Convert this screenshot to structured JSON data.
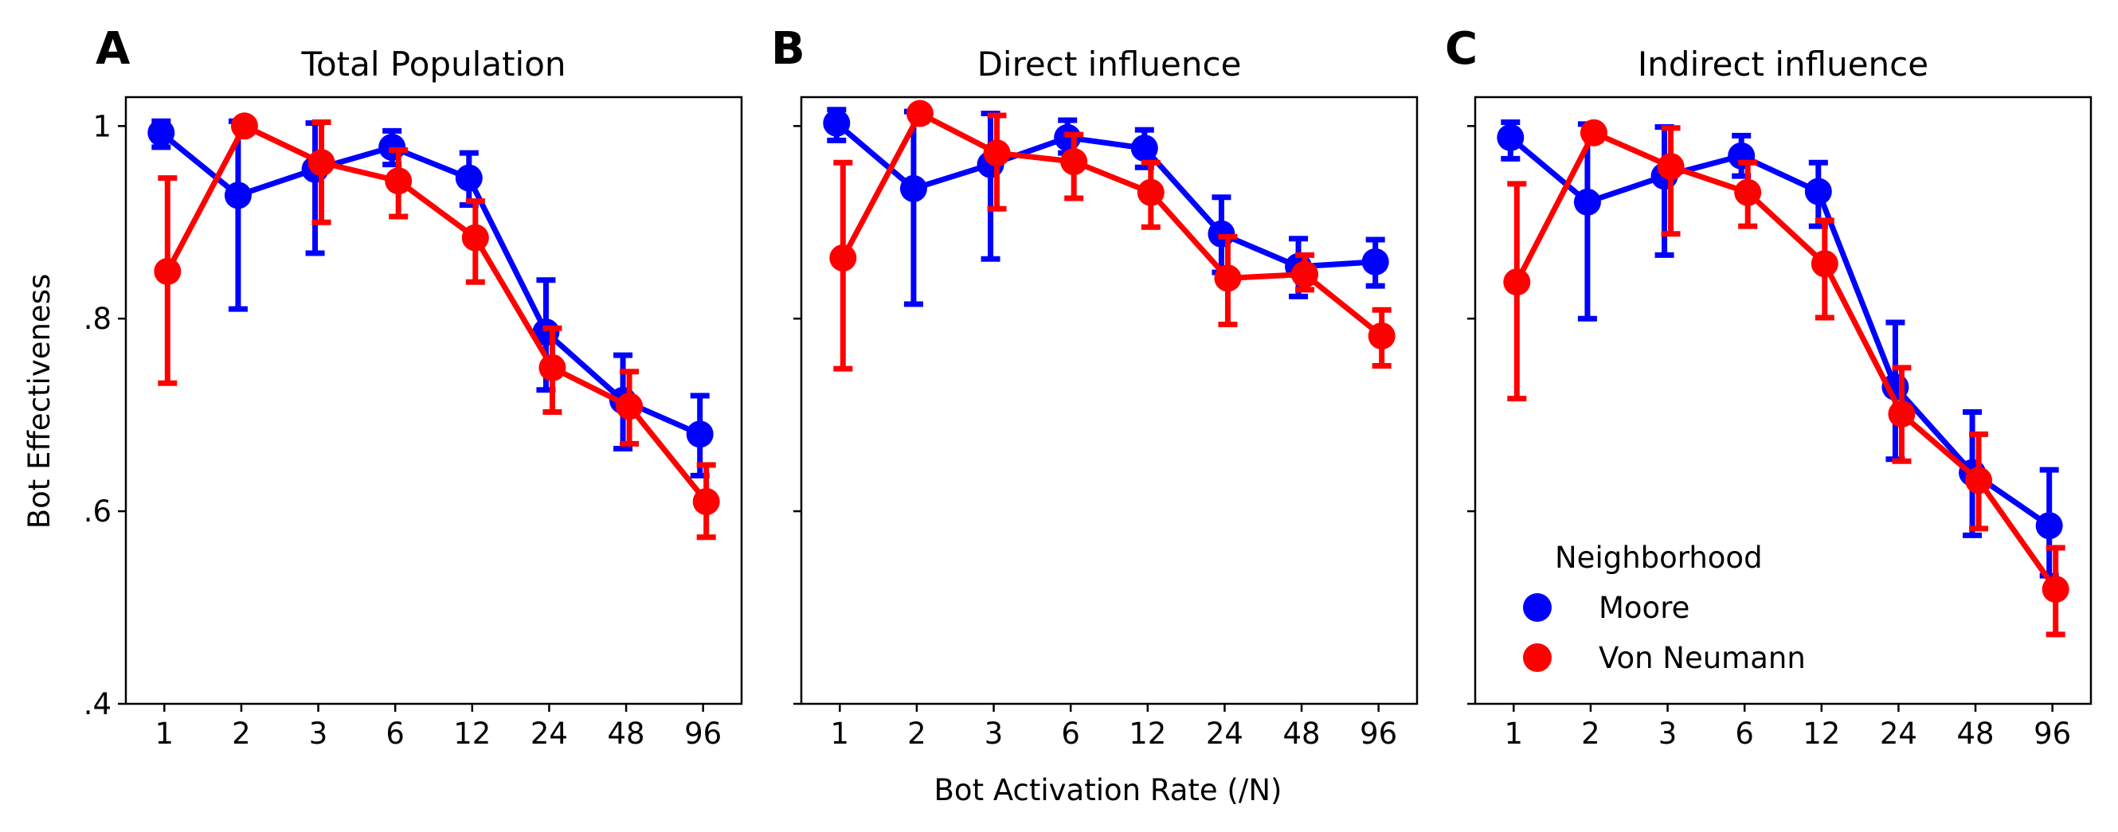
{
  "figure": {
    "xlabel": "Bot Activation Rate (/N)",
    "ylabel": "Bot Effectiveness",
    "legend": {
      "title": "Neighborhood",
      "entries": [
        {
          "label": "Moore",
          "color": "#0000ff"
        },
        {
          "label": "Von Neumann",
          "color": "#ff0000"
        }
      ]
    }
  },
  "chart_data": [
    {
      "type": "line",
      "panel_letter": "A",
      "title": "Total Population",
      "categories": [
        "1",
        "2",
        "3",
        "6",
        "12",
        "24",
        "48",
        "96"
      ],
      "ylim": [
        0.4,
        1.03
      ],
      "yticks": [
        0.4,
        0.6,
        0.8,
        1.0
      ],
      "ytick_labels": [
        ".4",
        ".6",
        ".8",
        "1"
      ],
      "show_ytick_labels": true,
      "show_legend": false,
      "series": [
        {
          "name": "Moore",
          "color": "#0000ff",
          "values": [
            0.993,
            0.928,
            0.955,
            0.978,
            0.946,
            0.786,
            0.715,
            0.68
          ],
          "err_low": [
            0.978,
            0.81,
            0.868,
            0.96,
            0.918,
            0.726,
            0.665,
            0.637
          ],
          "err_high": [
            1.005,
            1.005,
            1.003,
            0.995,
            0.972,
            0.84,
            0.762,
            0.72
          ]
        },
        {
          "name": "Von Neumann",
          "color": "#ff0000",
          "values": [
            0.849,
            1.0,
            0.962,
            0.943,
            0.884,
            0.749,
            0.709,
            0.61
          ],
          "err_low": [
            0.733,
            0.995,
            0.9,
            0.906,
            0.838,
            0.703,
            0.67,
            0.573
          ],
          "err_high": [
            0.946,
            1.003,
            1.004,
            0.975,
            0.922,
            0.79,
            0.745,
            0.648
          ]
        }
      ]
    },
    {
      "type": "line",
      "panel_letter": "B",
      "title": "Direct influence",
      "categories": [
        "1",
        "2",
        "3",
        "6",
        "12",
        "24",
        "48",
        "96"
      ],
      "ylim": [
        0.4,
        1.03
      ],
      "yticks": [
        0.4,
        0.6,
        0.8,
        1.0
      ],
      "ytick_labels": [
        ".4",
        ".6",
        ".8",
        "1"
      ],
      "show_ytick_labels": false,
      "show_legend": false,
      "series": [
        {
          "name": "Moore",
          "color": "#0000ff",
          "values": [
            1.003,
            0.935,
            0.96,
            0.988,
            0.977,
            0.888,
            0.854,
            0.859
          ],
          "err_low": [
            0.985,
            0.815,
            0.862,
            0.972,
            0.957,
            0.848,
            0.823,
            0.834
          ],
          "err_high": [
            1.017,
            1.015,
            1.013,
            1.006,
            0.996,
            0.926,
            0.883,
            0.882
          ]
        },
        {
          "name": "Von Neumann",
          "color": "#ff0000",
          "values": [
            0.863,
            1.013,
            0.972,
            0.963,
            0.931,
            0.842,
            0.846,
            0.782
          ],
          "err_low": [
            0.748,
            1.005,
            0.914,
            0.925,
            0.895,
            0.794,
            0.83,
            0.751
          ],
          "err_high": [
            0.962,
            1.017,
            1.011,
            0.991,
            0.962,
            0.885,
            0.866,
            0.809
          ]
        }
      ]
    },
    {
      "type": "line",
      "panel_letter": "C",
      "title": "Indirect influence",
      "categories": [
        "1",
        "2",
        "3",
        "6",
        "12",
        "24",
        "48",
        "96"
      ],
      "ylim": [
        0.4,
        1.03
      ],
      "yticks": [
        0.4,
        0.6,
        0.8,
        1.0
      ],
      "ytick_labels": [
        ".4",
        ".6",
        ".8",
        "1"
      ],
      "show_ytick_labels": false,
      "show_legend": true,
      "series": [
        {
          "name": "Moore",
          "color": "#0000ff",
          "values": [
            0.988,
            0.921,
            0.948,
            0.969,
            0.932,
            0.729,
            0.64,
            0.585
          ],
          "err_low": [
            0.966,
            0.8,
            0.866,
            0.948,
            0.896,
            0.654,
            0.575,
            0.533
          ],
          "err_high": [
            1.004,
            1.002,
            0.999,
            0.99,
            0.962,
            0.796,
            0.703,
            0.643
          ]
        },
        {
          "name": "Von Neumann",
          "color": "#ff0000",
          "values": [
            0.838,
            0.993,
            0.958,
            0.931,
            0.857,
            0.701,
            0.632,
            0.519
          ],
          "err_low": [
            0.717,
            0.985,
            0.888,
            0.896,
            0.801,
            0.652,
            0.582,
            0.472
          ],
          "err_high": [
            0.94,
            0.999,
            0.998,
            0.962,
            0.902,
            0.749,
            0.68,
            0.562
          ]
        }
      ]
    }
  ]
}
